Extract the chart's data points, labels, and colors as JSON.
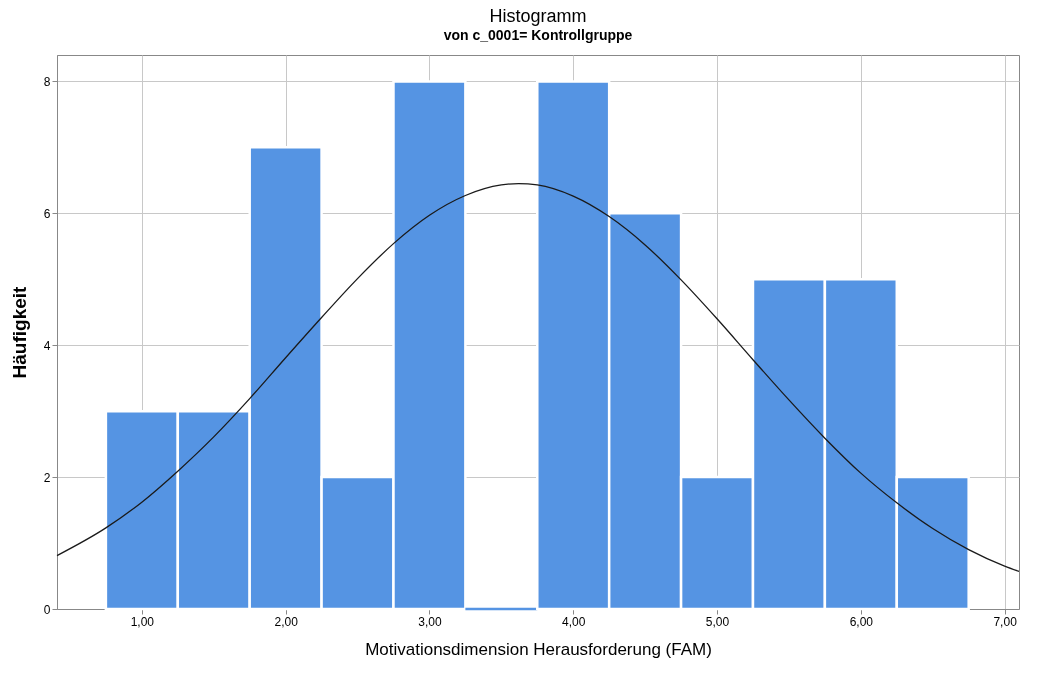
{
  "chart_data": {
    "type": "histogram",
    "title": "Histogramm",
    "subtitle": "von c_0001= Kontrollgruppe",
    "xlabel": "Motivationsdimension Herausforderung (FAM)",
    "ylabel": "Häufigkeit",
    "bins": [
      0.75,
      1.25,
      1.75,
      2.25,
      2.75,
      3.25,
      3.75,
      4.25,
      4.75,
      5.25,
      5.75,
      6.25,
      6.75
    ],
    "series": [
      {
        "type": "histogram",
        "color": "#5594e3",
        "values": [
          3,
          3,
          7,
          2,
          8,
          0,
          8,
          6,
          2,
          5,
          5,
          2
        ]
      },
      {
        "type": "line",
        "color": "#1a1a1a",
        "x": [
          0.41,
          0.75,
          1.0,
          1.25,
          1.5,
          1.75,
          2.0,
          2.25,
          2.5,
          2.75,
          3.0,
          3.25,
          3.5,
          3.62,
          3.75,
          4.0,
          4.25,
          4.5,
          4.75,
          5.0,
          5.25,
          5.5,
          5.75,
          6.0,
          6.25,
          6.5,
          6.75,
          7.0,
          7.1
        ],
        "values": [
          0.81,
          1.23,
          1.62,
          2.09,
          2.61,
          3.19,
          3.81,
          4.42,
          5.01,
          5.54,
          5.97,
          6.27,
          6.43,
          6.45,
          6.43,
          6.26,
          5.95,
          5.52,
          4.99,
          4.4,
          3.78,
          3.17,
          2.59,
          2.06,
          1.61,
          1.22,
          0.9,
          0.65,
          0.57
        ]
      }
    ],
    "xlim": [
      0.41,
      7.1
    ],
    "ylim": [
      0,
      8.4
    ],
    "xticks": [
      {
        "value": 1,
        "label": "1,00"
      },
      {
        "value": 2,
        "label": "2,00"
      },
      {
        "value": 3,
        "label": "3,00"
      },
      {
        "value": 4,
        "label": "4,00"
      },
      {
        "value": 5,
        "label": "5,00"
      },
      {
        "value": 6,
        "label": "6,00"
      },
      {
        "value": 7,
        "label": "7,00"
      }
    ],
    "yticks": [
      0,
      2,
      4,
      6,
      8
    ],
    "grid": true
  }
}
